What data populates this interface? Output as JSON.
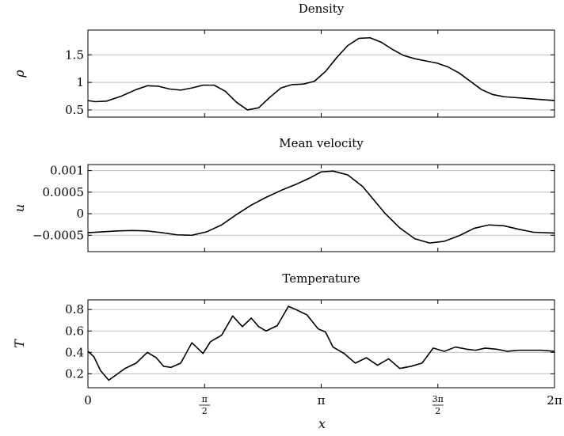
{
  "chart_data": [
    {
      "type": "line",
      "title": "Density",
      "ylabel": "ρ",
      "ylim": [
        0.37,
        1.95
      ],
      "yticks": [
        0.5,
        1,
        1.5
      ],
      "ytick_labels": [
        "0.5",
        "1",
        "1.5"
      ],
      "xlim": [
        0,
        6.2832
      ],
      "grid": "horizontal",
      "series": [
        {
          "x": [
            0,
            0.1,
            0.25,
            0.45,
            0.65,
            0.8,
            0.95,
            1.1,
            1.25,
            1.4,
            1.55,
            1.7,
            1.85,
            2.0,
            2.15,
            2.3,
            2.45,
            2.6,
            2.75,
            2.9,
            3.05,
            3.2,
            3.35,
            3.5,
            3.65,
            3.8,
            3.95,
            4.1,
            4.25,
            4.4,
            4.55,
            4.7,
            4.85,
            5.0,
            5.15,
            5.3,
            5.45,
            5.6,
            5.8,
            6.0,
            6.2832
          ],
          "y": [
            0.67,
            0.65,
            0.66,
            0.75,
            0.87,
            0.94,
            0.93,
            0.88,
            0.86,
            0.9,
            0.95,
            0.95,
            0.84,
            0.64,
            0.5,
            0.54,
            0.73,
            0.9,
            0.96,
            0.97,
            1.02,
            1.2,
            1.45,
            1.67,
            1.8,
            1.81,
            1.73,
            1.6,
            1.49,
            1.43,
            1.39,
            1.35,
            1.28,
            1.17,
            1.02,
            0.87,
            0.78,
            0.74,
            0.72,
            0.7,
            0.67
          ]
        }
      ]
    },
    {
      "type": "line",
      "title": "Mean velocity",
      "ylabel": "u",
      "ylim": [
        -0.00088,
        0.00114
      ],
      "yticks": [
        -0.0005,
        0,
        0.0005,
        0.001
      ],
      "ytick_labels": [
        "−0.0005",
        "0",
        "0.0005",
        "0.001"
      ],
      "xlim": [
        0,
        6.2832
      ],
      "grid": "horizontal",
      "series": [
        {
          "x": [
            0,
            0.2,
            0.4,
            0.6,
            0.8,
            1.0,
            1.2,
            1.4,
            1.6,
            1.8,
            2.0,
            2.2,
            2.4,
            2.6,
            2.8,
            3.0,
            3.14,
            3.3,
            3.5,
            3.7,
            3.85,
            4.0,
            4.2,
            4.4,
            4.6,
            4.8,
            5.0,
            5.2,
            5.4,
            5.6,
            5.8,
            6.0,
            6.2832
          ],
          "y": [
            -0.00044,
            -0.00042,
            -0.0004,
            -0.00039,
            -0.0004,
            -0.00044,
            -0.00049,
            -0.0005,
            -0.00042,
            -0.00026,
            -2e-05,
            0.0002,
            0.00038,
            0.00054,
            0.00068,
            0.00084,
            0.00097,
            0.00099,
            0.0009,
            0.00063,
            0.00032,
            1e-05,
            -0.00033,
            -0.00058,
            -0.00068,
            -0.00064,
            -0.00051,
            -0.00034,
            -0.00026,
            -0.00028,
            -0.00036,
            -0.00043,
            -0.00045
          ]
        }
      ]
    },
    {
      "type": "line",
      "title": "Temperature",
      "ylabel": "T",
      "xlabel": "x",
      "ylim": [
        0.07,
        0.89
      ],
      "yticks": [
        0.2,
        0.4,
        0.6,
        0.8
      ],
      "ytick_labels": [
        "0.2",
        "0.4",
        "0.6",
        "0.8"
      ],
      "xlim": [
        0,
        6.2832
      ],
      "xticks": [
        0,
        1.5708,
        3.1416,
        4.7124,
        6.2832
      ],
      "xtick_labels": [
        "0",
        "π/2",
        "π",
        "3π/2",
        "2π"
      ],
      "grid": "horizontal",
      "series": [
        {
          "x": [
            0,
            0.08,
            0.17,
            0.28,
            0.38,
            0.5,
            0.65,
            0.8,
            0.92,
            1.02,
            1.12,
            1.25,
            1.4,
            1.55,
            1.65,
            1.8,
            1.95,
            2.08,
            2.2,
            2.3,
            2.4,
            2.55,
            2.7,
            2.8,
            2.95,
            3.1,
            3.2,
            3.3,
            3.45,
            3.6,
            3.75,
            3.9,
            4.05,
            4.2,
            4.35,
            4.5,
            4.65,
            4.8,
            4.95,
            5.1,
            5.22,
            5.35,
            5.5,
            5.65,
            5.8,
            5.95,
            6.1,
            6.2832
          ],
          "y": [
            0.41,
            0.36,
            0.23,
            0.14,
            0.19,
            0.25,
            0.3,
            0.4,
            0.35,
            0.27,
            0.26,
            0.3,
            0.49,
            0.39,
            0.5,
            0.56,
            0.74,
            0.64,
            0.72,
            0.64,
            0.6,
            0.65,
            0.83,
            0.8,
            0.75,
            0.62,
            0.59,
            0.45,
            0.39,
            0.3,
            0.35,
            0.28,
            0.34,
            0.25,
            0.27,
            0.3,
            0.44,
            0.41,
            0.45,
            0.43,
            0.42,
            0.44,
            0.43,
            0.41,
            0.42,
            0.42,
            0.42,
            0.41
          ]
        }
      ]
    }
  ]
}
